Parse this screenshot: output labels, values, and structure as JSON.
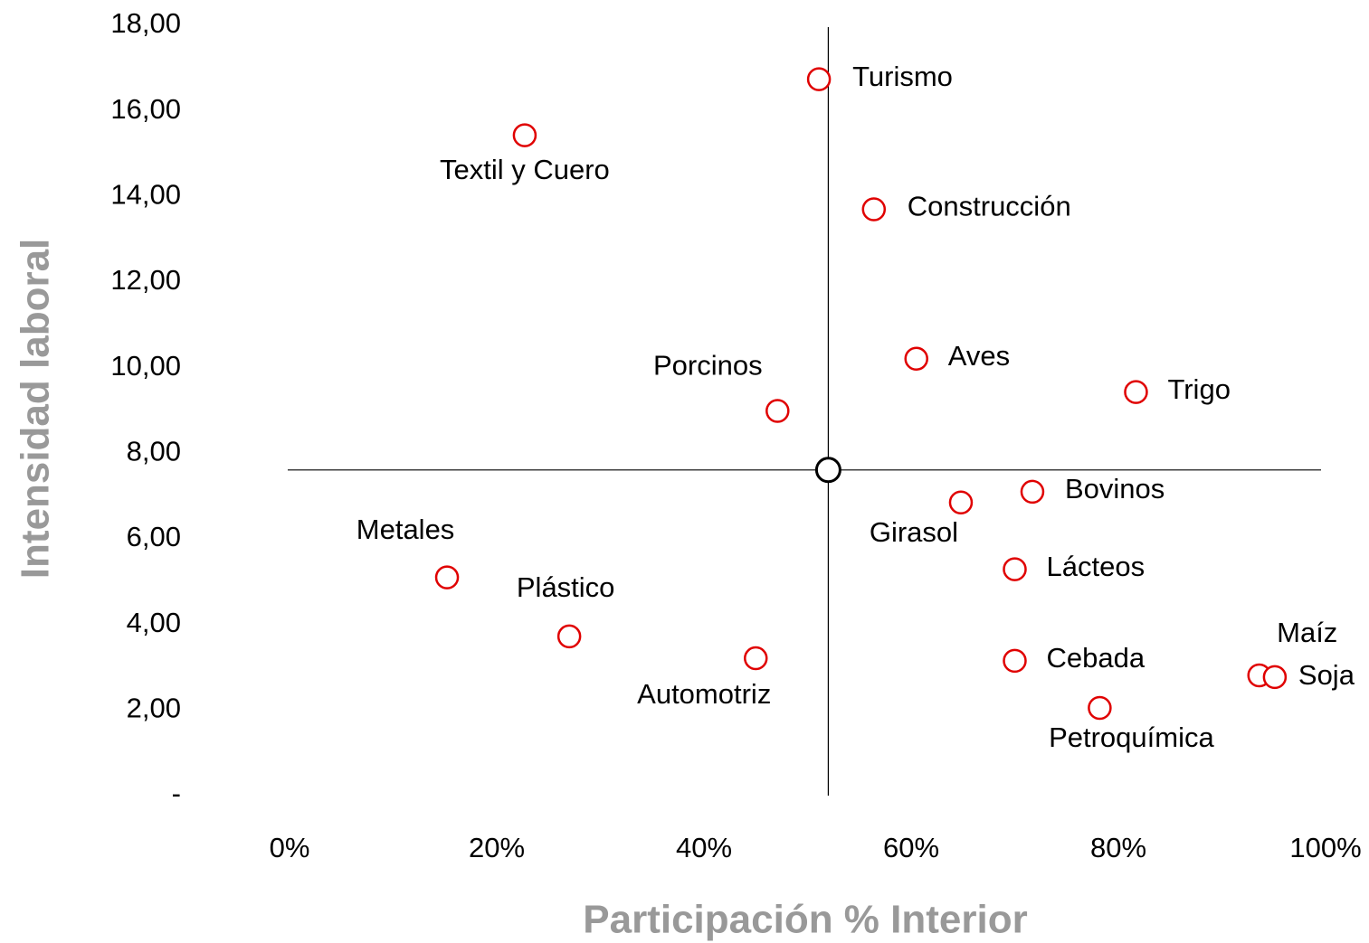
{
  "chart_data": {
    "type": "scatter",
    "x_label": "Participación % Interior",
    "y_label": "Intensidad laboral",
    "color": "#e00000",
    "reference_color": "#000000",
    "points": [
      {
        "label": "Turismo",
        "x": 51.1,
        "y": 16.74
      },
      {
        "label": "Textil y Cuero",
        "x": 22.7,
        "y": 15.43
      },
      {
        "label": "Construcción",
        "x": 56.4,
        "y": 13.7
      },
      {
        "label": "Aves",
        "x": 60.5,
        "y": 10.21
      },
      {
        "label": "Trigo",
        "x": 81.7,
        "y": 9.43
      },
      {
        "label": "Porcinos",
        "x": 47.1,
        "y": 8.99
      },
      {
        "label": "Bovinos",
        "x": 71.7,
        "y": 7.1
      },
      {
        "label": "Girasol",
        "x": 64.8,
        "y": 6.85
      },
      {
        "label": "Lácteos",
        "x": 70.0,
        "y": 5.29
      },
      {
        "label": "Metales",
        "x": 15.2,
        "y": 5.1
      },
      {
        "label": "Plástico",
        "x": 27.0,
        "y": 3.72
      },
      {
        "label": "Automotriz",
        "x": 45.0,
        "y": 3.21
      },
      {
        "label": "Cebada",
        "x": 70.0,
        "y": 3.15
      },
      {
        "label": "Maíz",
        "x": 93.6,
        "y": 2.81
      },
      {
        "label": "Soja",
        "x": 95.1,
        "y": 2.77
      },
      {
        "label": "Petroquímica",
        "x": 78.2,
        "y": 2.05
      }
    ],
    "reference": {
      "x": 52.0,
      "y": 7.61
    },
    "xlim": [
      0,
      100
    ],
    "ylim": [
      0,
      18
    ],
    "xticks": [
      {
        "value": 0,
        "label": "0%"
      },
      {
        "value": 20,
        "label": "20%"
      },
      {
        "value": 40,
        "label": "40%"
      },
      {
        "value": 60,
        "label": "60%"
      },
      {
        "value": 80,
        "label": "80%"
      },
      {
        "value": 100,
        "label": "100%"
      }
    ],
    "yticks": [
      {
        "value": 0,
        "label": "-"
      },
      {
        "value": 2,
        "label": "2,00"
      },
      {
        "value": 4,
        "label": "4,00"
      },
      {
        "value": 6,
        "label": "6,00"
      },
      {
        "value": 8,
        "label": "8,00"
      },
      {
        "value": 10,
        "label": "10,00"
      },
      {
        "value": 12,
        "label": "12,00"
      },
      {
        "value": 14,
        "label": "14,00"
      },
      {
        "value": 16,
        "label": "16,00"
      },
      {
        "value": 18,
        "label": "18,00"
      }
    ]
  }
}
